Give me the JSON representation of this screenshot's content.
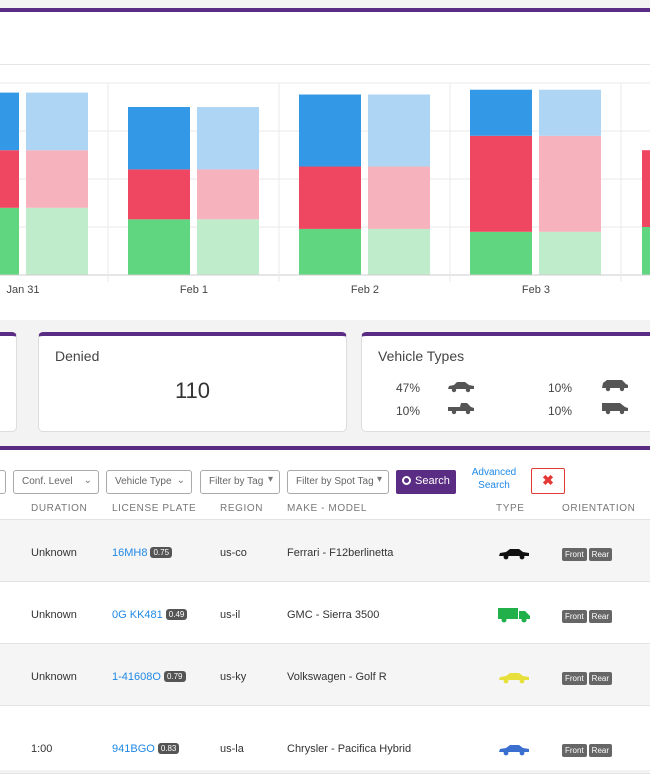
{
  "chart_data": {
    "type": "bar",
    "stacked": true,
    "x_tick_labels": [
      "Jan 31",
      "Feb 1",
      "Feb 2",
      "Feb 3"
    ],
    "series_colors": {
      "bottom": "#5fd67f",
      "middle": "#ef4761",
      "top": "#3399e6",
      "bottom_light": "#bfeccb",
      "middle_light": "#f6b3bd",
      "top_light": "#aed5f4"
    },
    "columns": [
      {
        "label": "Jan 31",
        "bottom": 70,
        "middle": 60,
        "top": 60
      },
      {
        "label": "Feb 1",
        "bottom": 58,
        "middle": 52,
        "top": 65
      },
      {
        "label": "Feb 2",
        "bottom": 48,
        "middle": 65,
        "top": 75
      },
      {
        "label": "Feb 3",
        "bottom": 45,
        "middle": 100,
        "top": 48
      }
    ],
    "ylim": [
      0,
      200
    ],
    "grid": true
  },
  "stats": {
    "denied": {
      "title": "Denied",
      "value": "110"
    },
    "vehicle_types": {
      "title": "Vehicle Types",
      "items": [
        {
          "pct": "47%",
          "icon": "sedan-icon"
        },
        {
          "pct": "10%",
          "icon": "suv-icon"
        },
        {
          "pct": "10%",
          "icon": "pickup-icon"
        },
        {
          "pct": "10%",
          "icon": "van-icon"
        }
      ]
    }
  },
  "filters": {
    "conf_level": "Conf. Level",
    "vehicle_type": "Vehicle Type",
    "filter_by_tag": "Filter by Tag",
    "filter_by_spot_tag": "Filter by Spot Tag",
    "search": "Search",
    "advanced_search": "Advanced Search",
    "clear": "✖"
  },
  "table": {
    "headers": {
      "duration": "DURATION",
      "plate": "LICENSE PLATE",
      "region": "REGION",
      "make_model": "MAKE - MODEL",
      "type": "TYPE",
      "orientation": "ORIENTATION"
    },
    "front": "Front",
    "rear": "Rear",
    "rows": [
      {
        "duration": "Unknown",
        "plate": "16MH8",
        "conf": "0.75",
        "region": "us-co",
        "make_model": "Ferrari - F12berlinetta",
        "vehicle_color": "#111111",
        "vehicle_icon": "sedan-icon"
      },
      {
        "duration": "Unknown",
        "plate": "0G KK481",
        "conf": "0.49",
        "region": "us-il",
        "make_model": "GMC - Sierra 3500",
        "vehicle_color": "#22b04b",
        "vehicle_icon": "truck-icon"
      },
      {
        "duration": "Unknown",
        "plate": "1-41608O",
        "conf": "0.79",
        "region": "us-ky",
        "make_model": "Volkswagen - Golf R",
        "vehicle_color": "#e8e03a",
        "vehicle_icon": "sedan-icon"
      },
      {
        "duration": "1:00",
        "plate": "941BGO",
        "conf": "0.83",
        "region": "us-la",
        "make_model": "Chrysler - Pacifica Hybrid",
        "vehicle_color": "#3a6fd0",
        "vehicle_icon": "sedan-icon"
      }
    ]
  }
}
